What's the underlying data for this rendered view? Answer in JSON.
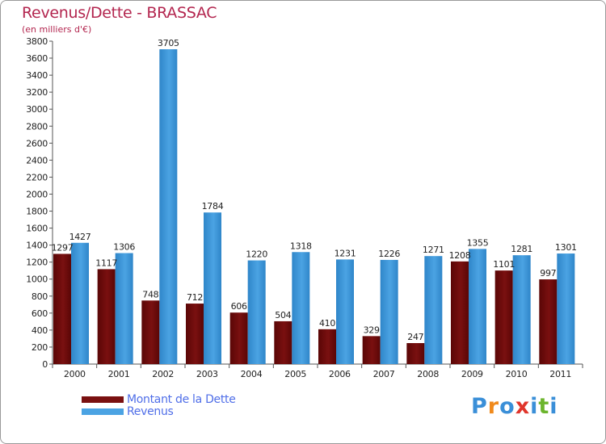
{
  "chart_data": {
    "type": "bar",
    "title": "Revenus/Dette - BRASSAC",
    "subtitle": "(en milliers d'€)",
    "xlabel": "",
    "ylabel": "",
    "ylim": [
      0,
      3800
    ],
    "yticks": [
      0,
      200,
      400,
      600,
      800,
      1000,
      1200,
      1400,
      1600,
      1800,
      2000,
      2200,
      2400,
      2600,
      2800,
      3000,
      3200,
      3400,
      3600,
      3800
    ],
    "categories": [
      "2000",
      "2001",
      "2002",
      "2003",
      "2004",
      "2005",
      "2006",
      "2007",
      "2008",
      "2009",
      "2010",
      "2011"
    ],
    "series": [
      {
        "name": "Montant de la Dette",
        "color": "#7a1010",
        "values": [
          1297,
          1117,
          748,
          712,
          606,
          504,
          410,
          329,
          247,
          1208,
          1101,
          997
        ],
        "labels": [
          "1297",
          "1117",
          "748",
          "712",
          "606",
          "504",
          "410",
          "329",
          "247",
          "1208",
          "1101",
          "997"
        ]
      },
      {
        "name": "Revenus",
        "color": "#4ba3e3",
        "values": [
          1427,
          1306,
          3705,
          1784,
          1220,
          1318,
          1231,
          1226,
          1271,
          1355,
          1281,
          1301
        ],
        "labels": [
          "1427",
          "1306",
          "3705",
          "1784",
          "1220",
          "1318",
          "1231",
          "1226",
          "1271",
          "1355",
          "1281",
          "1301"
        ]
      }
    ],
    "legend_position": "bottom-left",
    "grid": false
  },
  "logo": {
    "text": "Proxiti",
    "letters": [
      "P",
      "r",
      "o",
      "x",
      "i",
      "t",
      "i"
    ],
    "colors": [
      "#3a8fd8",
      "#f08a1c",
      "#3a8fd8",
      "#e0352b",
      "#3a8fd8",
      "#6cb52d",
      "#3a8fd8"
    ]
  }
}
